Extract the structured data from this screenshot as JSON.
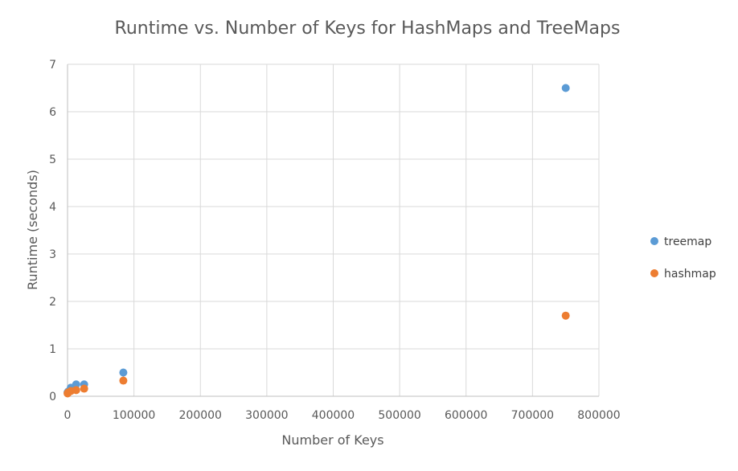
{
  "chart_data": {
    "type": "scatter",
    "title": "Runtime vs. Number of Keys for HashMaps and TreeMaps",
    "xlabel": "Number of Keys",
    "ylabel": "Runtime (seconds)",
    "xlim": [
      0,
      800000
    ],
    "ylim": [
      0,
      7
    ],
    "xticks": [
      0,
      100000,
      200000,
      300000,
      400000,
      500000,
      600000,
      700000,
      800000
    ],
    "yticks": [
      0,
      1,
      2,
      3,
      4,
      5,
      6,
      7
    ],
    "grid": true,
    "legend_position": "right",
    "series": [
      {
        "name": "treemap",
        "color": "#5b9bd5",
        "points": [
          {
            "x": 100,
            "y": 0.08
          },
          {
            "x": 1000,
            "y": 0.1
          },
          {
            "x": 5000,
            "y": 0.18
          },
          {
            "x": 13000,
            "y": 0.25
          },
          {
            "x": 25000,
            "y": 0.25
          },
          {
            "x": 84000,
            "y": 0.5
          },
          {
            "x": 750000,
            "y": 6.5
          }
        ]
      },
      {
        "name": "hashmap",
        "color": "#ed7d31",
        "points": [
          {
            "x": 100,
            "y": 0.06
          },
          {
            "x": 1000,
            "y": 0.08
          },
          {
            "x": 5000,
            "y": 0.11
          },
          {
            "x": 13000,
            "y": 0.13
          },
          {
            "x": 25000,
            "y": 0.16
          },
          {
            "x": 84000,
            "y": 0.33
          },
          {
            "x": 750000,
            "y": 1.7
          }
        ]
      }
    ]
  }
}
